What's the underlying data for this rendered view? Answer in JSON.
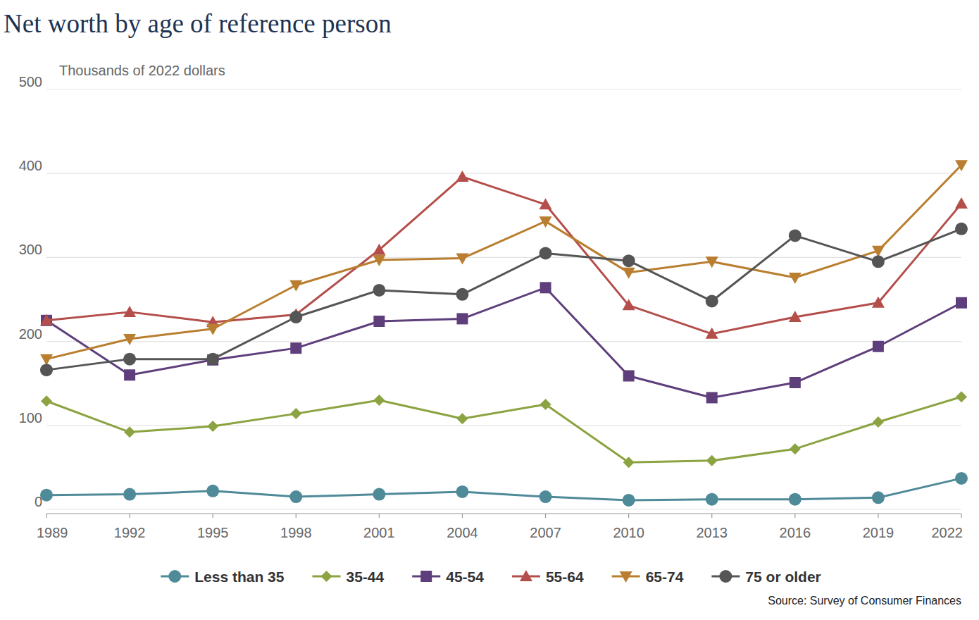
{
  "chart_data": {
    "type": "line",
    "title": "Net worth by age of reference person",
    "y_label": "Thousands of 2022 dollars",
    "source": "Source: Survey of Consumer Finances",
    "x": [
      1989,
      1992,
      1995,
      1998,
      2001,
      2004,
      2007,
      2010,
      2013,
      2016,
      2019,
      2022
    ],
    "xlim": [
      1989,
      2022
    ],
    "xticks": [
      1989,
      1992,
      1995,
      1998,
      2001,
      2004,
      2007,
      2010,
      2013,
      2016,
      2019,
      2022
    ],
    "ylim": [
      0,
      500
    ],
    "yticks": [
      0,
      100,
      200,
      300,
      400,
      500
    ],
    "grid": true,
    "legend": "bottom",
    "series": [
      {
        "name": "Less than 35",
        "color": "#4f8a99",
        "marker": "circle",
        "values": [
          17,
          18,
          22,
          15,
          18,
          21,
          15,
          11,
          12,
          12,
          14,
          37
        ]
      },
      {
        "name": "35-44",
        "color": "#8ba341",
        "marker": "diamond",
        "values": [
          129,
          92,
          99,
          114,
          130,
          108,
          125,
          56,
          58,
          72,
          104,
          134
        ]
      },
      {
        "name": "45-54",
        "color": "#5e3f7c",
        "marker": "square",
        "values": [
          225,
          160,
          178,
          192,
          224,
          227,
          264,
          159,
          133,
          151,
          194,
          246
        ]
      },
      {
        "name": "55-64",
        "color": "#b44e4b",
        "marker": "triangle",
        "values": [
          225,
          235,
          223,
          232,
          309,
          396,
          363,
          243,
          209,
          229,
          246,
          364
        ]
      },
      {
        "name": "65-74",
        "color": "#b97e2f",
        "marker": "triangle-down",
        "values": [
          179,
          203,
          215,
          267,
          297,
          299,
          343,
          282,
          295,
          276,
          308,
          410
        ]
      },
      {
        "name": "75 or older",
        "color": "#555555",
        "marker": "circle",
        "values": [
          166,
          179,
          179,
          229,
          261,
          256,
          305,
          296,
          248,
          326,
          295,
          334
        ]
      }
    ]
  }
}
